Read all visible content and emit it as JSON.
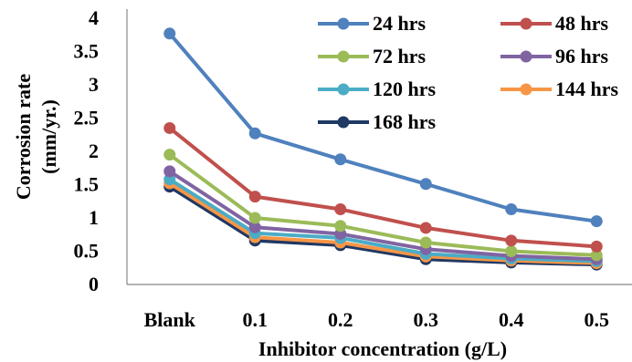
{
  "chart_data": {
    "type": "line",
    "title": "",
    "xlabel": "Inhibitor concentration (g/L)",
    "ylabel_lines": [
      "Corrosion rate",
      "(mm/yr.)"
    ],
    "categories": [
      "Blank",
      "0.1",
      "0.2",
      "0.3",
      "0.4",
      "0.5"
    ],
    "ylim": [
      0,
      4
    ],
    "yticks": [
      "0",
      "0.5",
      "1",
      "1.5",
      "2",
      "2.5",
      "3",
      "3.5",
      "4"
    ],
    "grid": false,
    "legend_position": "top-right",
    "series": [
      {
        "name": "24 hrs",
        "color": "#4F81BD",
        "values": [
          3.77,
          2.27,
          1.88,
          1.51,
          1.13,
          0.95
        ]
      },
      {
        "name": "48 hrs",
        "color": "#C0504D",
        "values": [
          2.35,
          1.32,
          1.13,
          0.85,
          0.66,
          0.57
        ]
      },
      {
        "name": "72 hrs",
        "color": "#9BBB59",
        "values": [
          1.95,
          1.0,
          0.88,
          0.63,
          0.5,
          0.44
        ]
      },
      {
        "name": "96 hrs",
        "color": "#8064A2",
        "values": [
          1.7,
          0.86,
          0.76,
          0.53,
          0.43,
          0.38
        ]
      },
      {
        "name": "120 hrs",
        "color": "#4BACC6",
        "values": [
          1.58,
          0.77,
          0.7,
          0.46,
          0.39,
          0.35
        ]
      },
      {
        "name": "144 hrs",
        "color": "#F79646",
        "values": [
          1.52,
          0.71,
          0.63,
          0.42,
          0.36,
          0.32
        ]
      },
      {
        "name": "168 hrs",
        "color": "#1F3864",
        "values": [
          1.47,
          0.66,
          0.59,
          0.38,
          0.33,
          0.3
        ]
      }
    ]
  }
}
